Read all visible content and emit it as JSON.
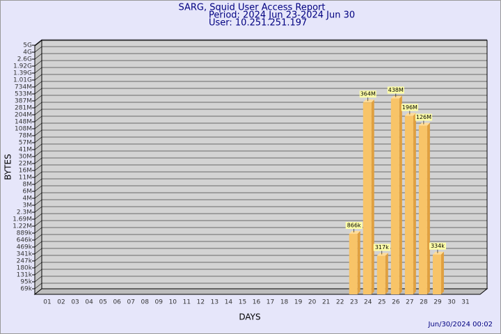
{
  "chart_data": {
    "type": "bar",
    "title": "SARG, Squid User Access Report",
    "subtitle": [
      "Period: 2024 Jun 23-2024 Jun 30",
      "User: 10.251.251.197"
    ],
    "xlabel": "DAYS",
    "ylabel": "BYTES",
    "footer": "Jun/30/2024 00:02",
    "categories": [
      "01",
      "02",
      "03",
      "04",
      "05",
      "06",
      "07",
      "08",
      "09",
      "10",
      "11",
      "12",
      "13",
      "14",
      "15",
      "16",
      "17",
      "18",
      "19",
      "20",
      "21",
      "22",
      "23",
      "24",
      "25",
      "26",
      "27",
      "28",
      "29",
      "30",
      "31"
    ],
    "values": [
      null,
      null,
      null,
      null,
      null,
      null,
      null,
      null,
      null,
      null,
      null,
      null,
      null,
      null,
      null,
      null,
      null,
      null,
      null,
      null,
      null,
      null,
      866000,
      364000000,
      317000,
      438000000,
      196000000,
      126000000,
      334000,
      null,
      null
    ],
    "value_labels": [
      null,
      null,
      null,
      null,
      null,
      null,
      null,
      null,
      null,
      null,
      null,
      null,
      null,
      null,
      null,
      null,
      null,
      null,
      null,
      null,
      null,
      null,
      "866k",
      "364M",
      "317k",
      "438M",
      "196M",
      "126M",
      "334k",
      null,
      null
    ],
    "color": "#f8c468",
    "ylim": [
      0,
      5000000000
    ],
    "yticks": [
      {
        "value": 5000000000,
        "label": "5G"
      },
      {
        "value": 4000000000,
        "label": "4G"
      },
      {
        "value": 2600000000,
        "label": "2.6G"
      },
      {
        "value": 1920000000,
        "label": "1.92G"
      },
      {
        "value": 1390000000,
        "label": "1.39G"
      },
      {
        "value": 1010000000,
        "label": "1.01G"
      },
      {
        "value": 734000000,
        "label": "734M"
      },
      {
        "value": 533000000,
        "label": "533M"
      },
      {
        "value": 387000000,
        "label": "387M"
      },
      {
        "value": 281000000,
        "label": "281M"
      },
      {
        "value": 204000000,
        "label": "204M"
      },
      {
        "value": 148000000,
        "label": "148M"
      },
      {
        "value": 108000000,
        "label": "108M"
      },
      {
        "value": 78000000,
        "label": "78M"
      },
      {
        "value": 57000000,
        "label": "57M"
      },
      {
        "value": 41000000,
        "label": "41M"
      },
      {
        "value": 30000000,
        "label": "30M"
      },
      {
        "value": 22000000,
        "label": "22M"
      },
      {
        "value": 16000000,
        "label": "16M"
      },
      {
        "value": 11000000,
        "label": "11M"
      },
      {
        "value": 8000000,
        "label": "8M"
      },
      {
        "value": 6000000,
        "label": "6M"
      },
      {
        "value": 4000000,
        "label": "4M"
      },
      {
        "value": 3000000,
        "label": "3M"
      },
      {
        "value": 2300000,
        "label": "2.3M"
      },
      {
        "value": 1690000,
        "label": "1.69M"
      },
      {
        "value": 1220000,
        "label": "1.22M"
      },
      {
        "value": 889000,
        "label": "889k"
      },
      {
        "value": 646000,
        "label": "646k"
      },
      {
        "value": 469000,
        "label": "469k"
      },
      {
        "value": 341000,
        "label": "341k"
      },
      {
        "value": 247000,
        "label": "247k"
      },
      {
        "value": 180000,
        "label": "180k"
      },
      {
        "value": 131000,
        "label": "131k"
      },
      {
        "value": 95000,
        "label": "95k"
      },
      {
        "value": 69000,
        "label": "69k"
      }
    ],
    "grid": true
  }
}
